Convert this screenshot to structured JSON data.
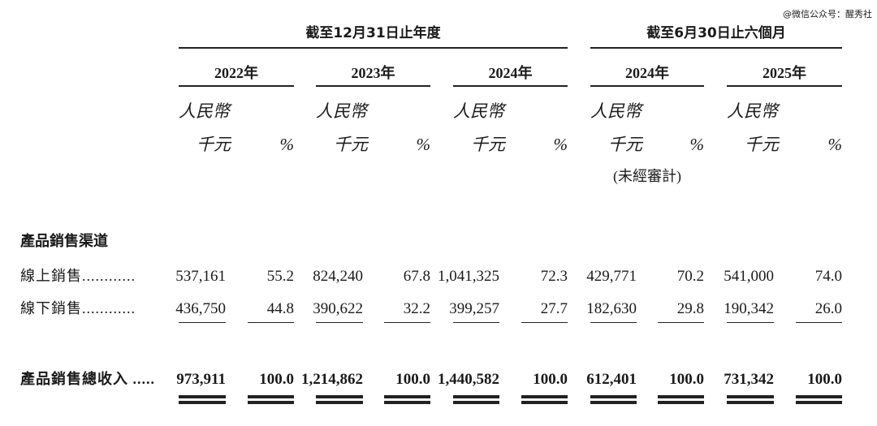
{
  "watermark": "@微信公众号：醒秀社",
  "header": {
    "groups": [
      "截至12月31日止年度",
      "截至6月30日止六個月"
    ],
    "years": [
      "2022年",
      "2023年",
      "2024年",
      "2024年",
      "2025年"
    ],
    "currency": [
      "人民幣",
      "人民幣",
      "人民幣",
      "人民幣",
      "人民幣"
    ],
    "units": [
      [
        "千元",
        "%"
      ],
      [
        "千元",
        "%"
      ],
      [
        "千元",
        "%"
      ],
      [
        "千元",
        "%"
      ],
      [
        "千元",
        "%"
      ]
    ],
    "note": "(未經審計)"
  },
  "section": "產品銷售渠道",
  "table": {
    "rows": [
      {
        "label": "線上銷售............",
        "cells": [
          "537,161",
          "55.2",
          "824,240",
          "67.8",
          "1,041,325",
          "72.3",
          "429,771",
          "70.2",
          "541,000",
          "74.0"
        ]
      },
      {
        "label": "線下銷售............",
        "cells": [
          "436,750",
          "44.8",
          "390,622",
          "32.2",
          "399,257",
          "27.7",
          "182,630",
          "29.8",
          "190,342",
          "26.0"
        ]
      },
      {
        "label": "產品銷售總收入 .....",
        "cells": [
          "973,911",
          "100.0",
          "1,214,862",
          "100.0",
          "1,440,582",
          "100.0",
          "612,401",
          "100.0",
          "731,342",
          "100.0"
        ]
      }
    ]
  }
}
